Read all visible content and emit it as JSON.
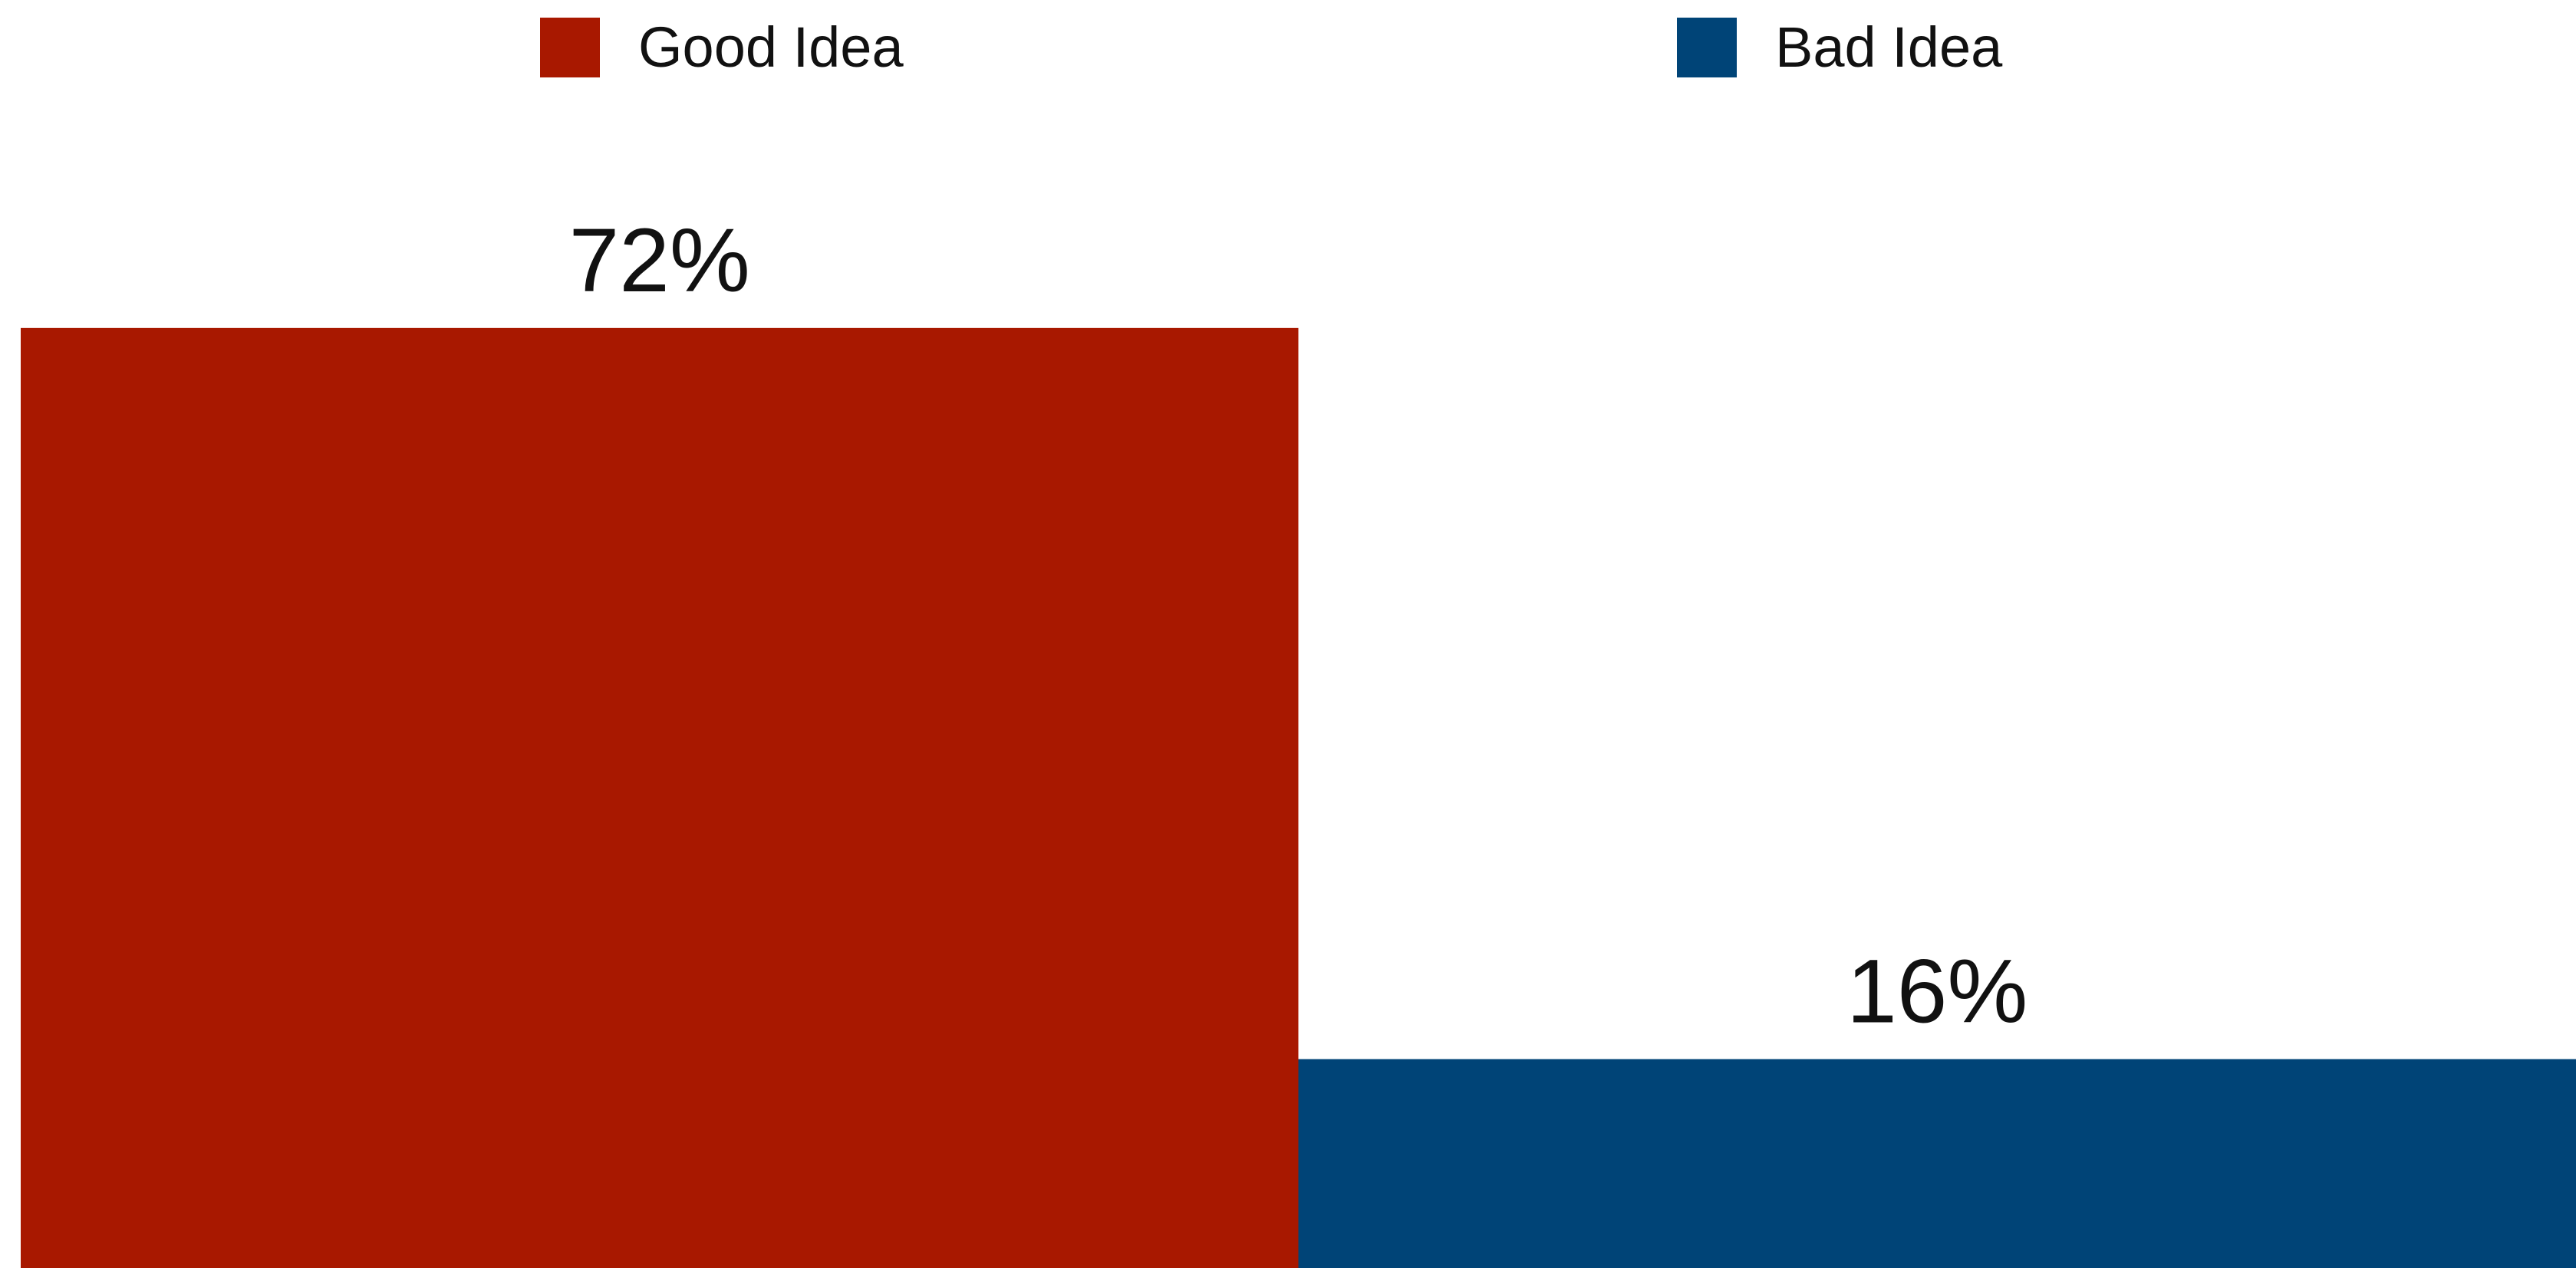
{
  "chart_data": {
    "type": "bar",
    "categories": [
      "Good Idea",
      "Bad Idea"
    ],
    "values": [
      72,
      16
    ],
    "colors": [
      "#a81800",
      "#004477"
    ],
    "data_labels": [
      "72%",
      "16%"
    ],
    "ylim": [
      0,
      100
    ],
    "legend": {
      "placement": "top",
      "entries": [
        {
          "label": "Good Idea",
          "color": "#a81800"
        },
        {
          "label": "Bad Idea",
          "color": "#004477"
        }
      ]
    },
    "grid": false,
    "axes_visible": false
  }
}
